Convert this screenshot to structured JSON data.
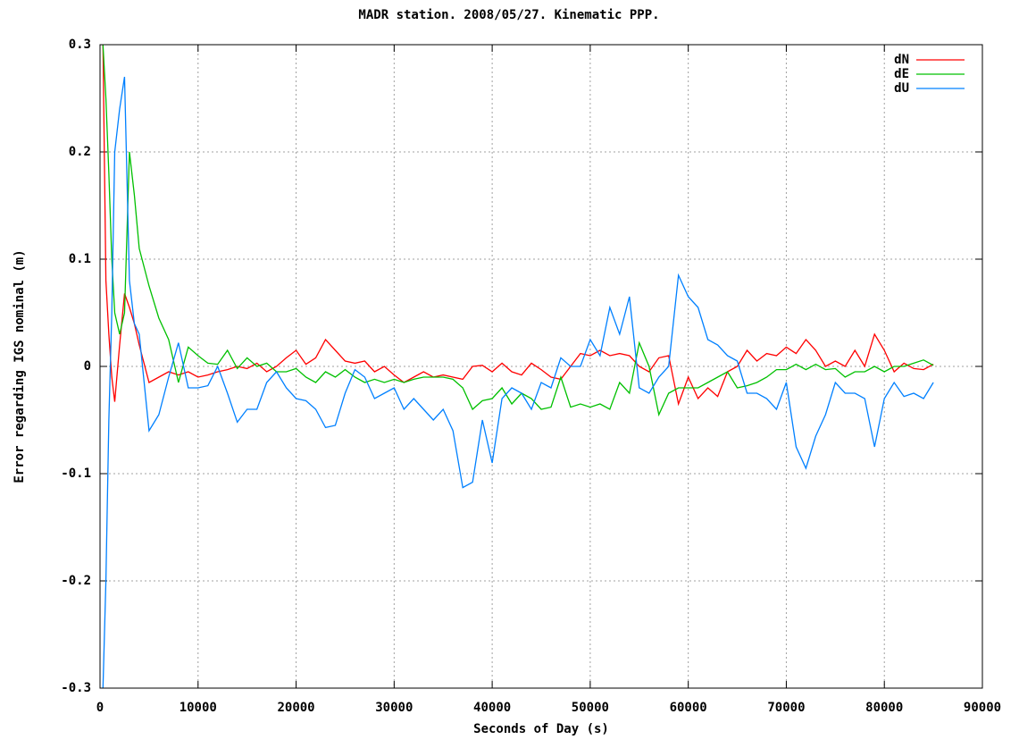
{
  "chart_data": {
    "type": "line",
    "title": "MADR station. 2008/05/27. Kinematic PPP.",
    "xlabel": "Seconds of Day (s)",
    "ylabel": "Error regarding IGS nominal (m)",
    "x": [
      300,
      600,
      900,
      1200,
      1500,
      2000,
      2500,
      3000,
      3500,
      4000,
      5000,
      6000,
      7000,
      8000,
      9000,
      10000,
      11000,
      12000,
      13000,
      14000,
      15000,
      16000,
      17000,
      18000,
      19000,
      20000,
      21000,
      22000,
      23000,
      24000,
      25000,
      26000,
      27000,
      28000,
      29000,
      30000,
      31000,
      32000,
      33000,
      34000,
      35000,
      36000,
      37000,
      38000,
      39000,
      40000,
      41000,
      42000,
      43000,
      44000,
      45000,
      46000,
      47000,
      48000,
      49000,
      50000,
      51000,
      52000,
      53000,
      54000,
      55000,
      56000,
      57000,
      58000,
      59000,
      60000,
      61000,
      62000,
      63000,
      64000,
      65000,
      66000,
      67000,
      68000,
      69000,
      70000,
      71000,
      72000,
      73000,
      74000,
      75000,
      76000,
      77000,
      78000,
      79000,
      80000,
      81000,
      82000,
      83000,
      84000,
      85000
    ],
    "series": [
      {
        "name": "dN",
        "color": "#ff0000",
        "values": [
          0.3,
          0.08,
          0.03,
          -0.01,
          -0.033,
          0.02,
          0.068,
          0.055,
          0.04,
          0.02,
          -0.015,
          -0.01,
          -0.005,
          -0.008,
          -0.005,
          -0.01,
          -0.008,
          -0.005,
          -0.003,
          0.0,
          -0.002,
          0.003,
          -0.005,
          0.0,
          0.008,
          0.015,
          0.002,
          0.008,
          0.025,
          0.015,
          0.005,
          0.003,
          0.005,
          -0.005,
          0.0,
          -0.008,
          -0.015,
          -0.01,
          -0.005,
          -0.01,
          -0.008,
          -0.01,
          -0.012,
          0.0,
          0.001,
          -0.005,
          0.003,
          -0.005,
          -0.008,
          0.003,
          -0.003,
          -0.01,
          -0.012,
          0.0,
          0.012,
          0.01,
          0.015,
          0.01,
          0.012,
          0.01,
          0.0,
          -0.005,
          0.008,
          0.01,
          -0.035,
          -0.01,
          -0.03,
          -0.02,
          -0.028,
          -0.005,
          0.0,
          0.015,
          0.005,
          0.012,
          0.01,
          0.018,
          0.012,
          0.025,
          0.015,
          0.0,
          0.005,
          0.0,
          0.015,
          0.0,
          0.03,
          0.015,
          -0.005,
          0.003,
          -0.002,
          -0.003,
          0.002
        ]
      },
      {
        "name": "dE",
        "color": "#00c000",
        "values": [
          0.3,
          0.25,
          0.18,
          0.1,
          0.05,
          0.03,
          0.05,
          0.2,
          0.16,
          0.11,
          0.075,
          0.045,
          0.025,
          -0.015,
          0.018,
          0.01,
          0.003,
          0.002,
          0.015,
          -0.002,
          0.008,
          0.0,
          0.003,
          -0.005,
          -0.005,
          -0.002,
          -0.01,
          -0.015,
          -0.005,
          -0.01,
          -0.003,
          -0.01,
          -0.015,
          -0.012,
          -0.015,
          -0.012,
          -0.015,
          -0.012,
          -0.01,
          -0.01,
          -0.01,
          -0.012,
          -0.02,
          -0.04,
          -0.032,
          -0.03,
          -0.02,
          -0.035,
          -0.025,
          -0.03,
          -0.04,
          -0.038,
          -0.01,
          -0.038,
          -0.035,
          -0.038,
          -0.035,
          -0.04,
          -0.015,
          -0.025,
          0.022,
          0.0,
          -0.045,
          -0.025,
          -0.02,
          -0.02,
          -0.02,
          -0.015,
          -0.01,
          -0.005,
          -0.02,
          -0.018,
          -0.015,
          -0.01,
          -0.003,
          -0.003,
          0.002,
          -0.003,
          0.002,
          -0.003,
          -0.002,
          -0.01,
          -0.005,
          -0.005,
          0.0,
          -0.005,
          0.0,
          0.0,
          0.003,
          0.006,
          0.001
        ]
      },
      {
        "name": "dU",
        "color": "#0080ff",
        "values": [
          -0.3,
          -0.2,
          -0.05,
          0.05,
          0.2,
          0.24,
          0.27,
          0.08,
          0.04,
          0.03,
          -0.06,
          -0.045,
          -0.01,
          0.022,
          -0.02,
          -0.02,
          -0.018,
          0.0,
          -0.025,
          -0.052,
          -0.04,
          -0.04,
          -0.015,
          -0.005,
          -0.02,
          -0.03,
          -0.032,
          -0.04,
          -0.057,
          -0.055,
          -0.025,
          -0.003,
          -0.01,
          -0.03,
          -0.025,
          -0.02,
          -0.04,
          -0.03,
          -0.04,
          -0.05,
          -0.04,
          -0.06,
          -0.113,
          -0.108,
          -0.05,
          -0.09,
          -0.03,
          -0.02,
          -0.025,
          -0.04,
          -0.015,
          -0.02,
          0.008,
          0.0,
          0.0,
          0.025,
          0.01,
          0.055,
          0.03,
          0.065,
          -0.02,
          -0.025,
          -0.01,
          0.0,
          0.085,
          0.065,
          0.055,
          0.025,
          0.02,
          0.01,
          0.005,
          -0.025,
          -0.025,
          -0.03,
          -0.04,
          -0.015,
          -0.075,
          -0.095,
          -0.065,
          -0.045,
          -0.015,
          -0.025,
          -0.025,
          -0.03,
          -0.075,
          -0.03,
          -0.015,
          -0.028,
          -0.025,
          -0.03,
          -0.015
        ]
      }
    ],
    "xlim": [
      0,
      90000
    ],
    "xticks": [
      0,
      10000,
      20000,
      30000,
      40000,
      50000,
      60000,
      70000,
      80000,
      90000
    ],
    "ylim": [
      -0.3,
      0.3
    ],
    "yticks": [
      -0.3,
      -0.2,
      -0.1,
      0,
      0.1,
      0.2,
      0.3
    ],
    "grid": true,
    "legend": "top-right"
  }
}
